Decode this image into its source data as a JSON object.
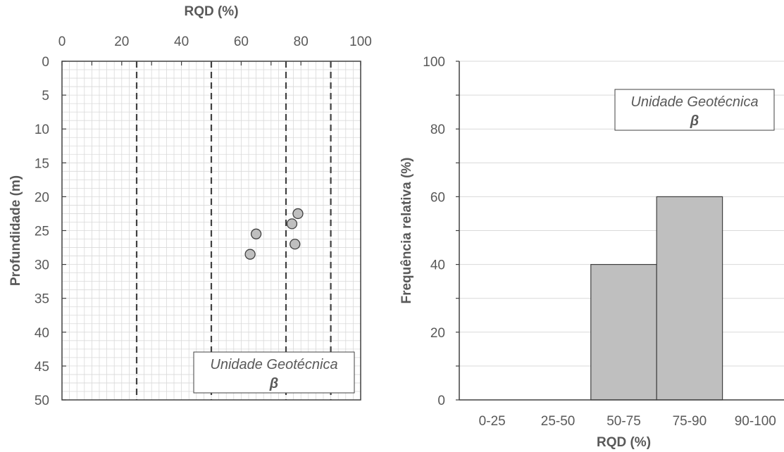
{
  "chart_data": [
    {
      "type": "scatter",
      "title": "",
      "xlabel": "RQD (%)",
      "ylabel": "Profundidade (m)",
      "xlim": [
        0,
        100
      ],
      "ylim": [
        0,
        50
      ],
      "y_inverted": true,
      "x_axis_position": "top",
      "x_ticks": [
        "0",
        "20",
        "40",
        "60",
        "80",
        "100"
      ],
      "y_ticks": [
        "0",
        "5",
        "10",
        "15",
        "20",
        "25",
        "30",
        "35",
        "40",
        "45",
        "50"
      ],
      "grid": true,
      "reference_lines_x": [
        25,
        50,
        75,
        90
      ],
      "series": [
        {
          "x": [
            79,
            77,
            65,
            78,
            63
          ],
          "y": [
            22.5,
            24,
            25.5,
            27,
            28.5
          ]
        }
      ],
      "annotation": {
        "line1": "Unidade Geotécnica",
        "line2": "β",
        "placement": "bottom-right"
      }
    },
    {
      "type": "bar",
      "title": "",
      "xlabel": "RQD (%)",
      "ylabel": "Frequência relativa (%)",
      "categories": [
        "0-25",
        "25-50",
        "50-75",
        "75-90",
        "90-100"
      ],
      "values": [
        0,
        0,
        40,
        60,
        0
      ],
      "ylim": [
        0,
        100
      ],
      "y_ticks": [
        "0",
        "20",
        "40",
        "60",
        "80",
        "100"
      ],
      "grid": true,
      "annotation": {
        "line1": "Unidade Geotécnica",
        "line2": "β",
        "placement": "top-right"
      }
    }
  ],
  "colors": {
    "marker_fill": "#bfbfbf",
    "bar_fill": "#bfbfbf",
    "grid": "#d9d9d9",
    "axis": "#404040",
    "text": "#595959",
    "label": "#595959"
  }
}
